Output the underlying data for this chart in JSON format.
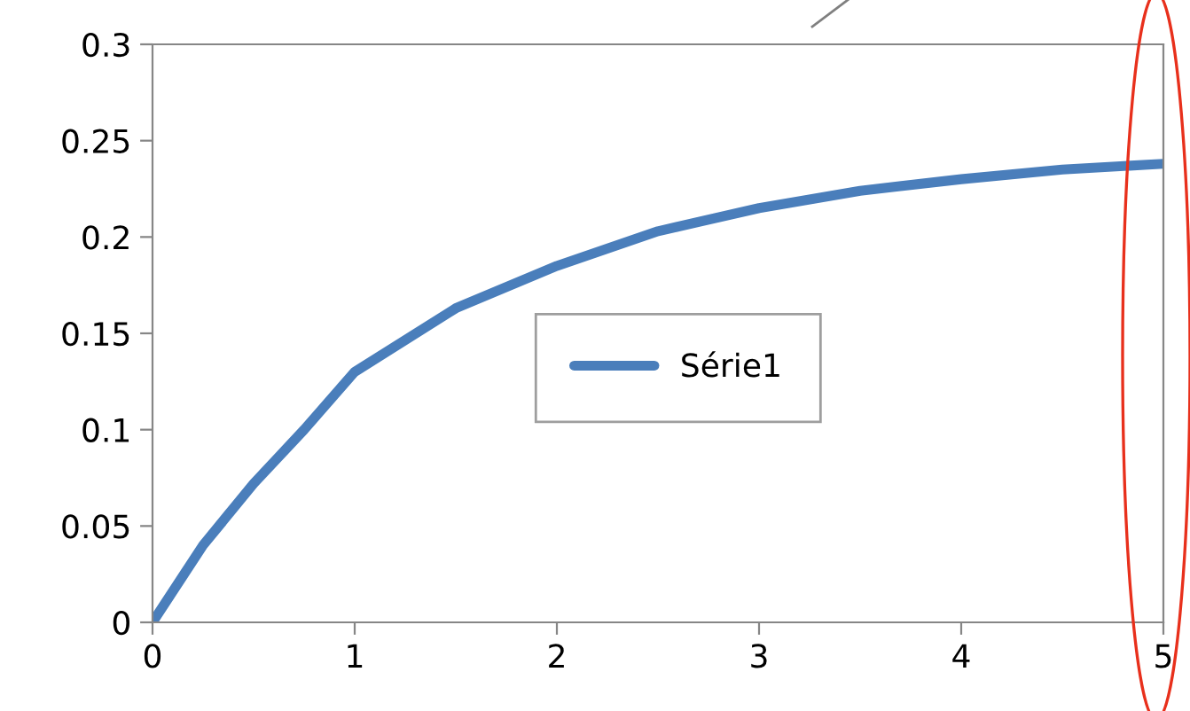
{
  "chart_data": {
    "type": "line",
    "x": [
      0,
      0.25,
      0.5,
      0.75,
      1,
      1.5,
      2,
      2.5,
      3,
      3.5,
      4,
      4.5,
      5
    ],
    "series": [
      {
        "name": "Série1",
        "color": "#4a7ebb",
        "values": [
          0,
          0.04,
          0.072,
          0.1,
          0.13,
          0.163,
          0.185,
          0.203,
          0.215,
          0.224,
          0.23,
          0.235,
          0.238
        ]
      }
    ],
    "xlim": [
      0,
      5
    ],
    "xticks": [
      0,
      1,
      2,
      3,
      4,
      5
    ],
    "ylim": [
      0,
      0.3
    ],
    "yticks": [
      0,
      0.05,
      0.1,
      0.15,
      0.2,
      0.25,
      0.3
    ],
    "grid": false,
    "legend": "center",
    "marker": "none",
    "line_style": "solid"
  }
}
